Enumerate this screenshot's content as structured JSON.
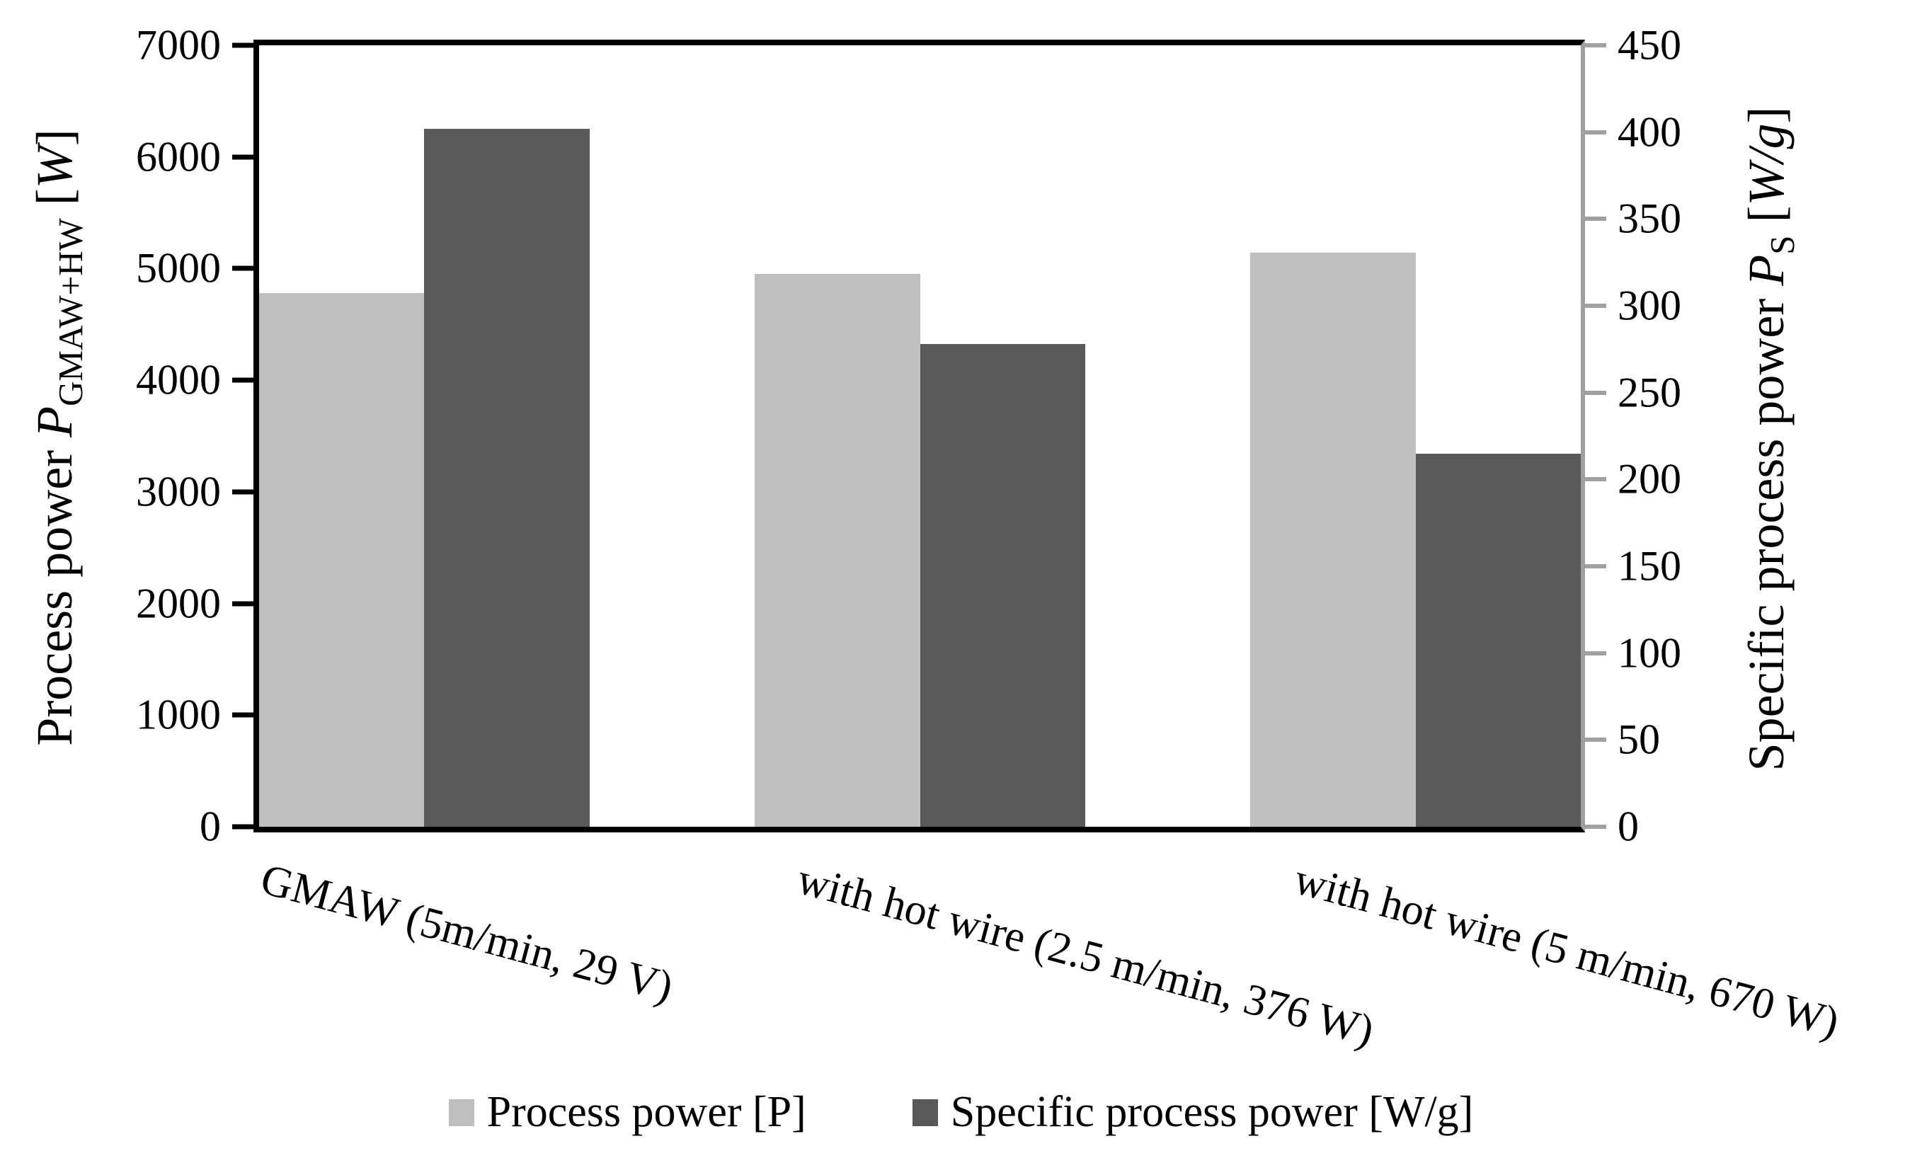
{
  "chart_data": {
    "type": "bar",
    "title": "",
    "categories": [
      "GMAW (5m/min, 29 V)",
      "with hot wire (2.5 m/min, 376 W)",
      "with hot wire (5 m/min, 670 W)"
    ],
    "series": [
      {
        "name": "Process power [P]",
        "axis": "left",
        "color": "#bfbfbf",
        "values": [
          4780,
          4950,
          5140
        ]
      },
      {
        "name": "Specific process power [W/g]",
        "axis": "right",
        "color": "#595959",
        "values": [
          402,
          278,
          215
        ]
      }
    ],
    "left_axis": {
      "label": "Process power",
      "symbol": "P",
      "symbol_sub": "GMAW+HW",
      "unit_open": "[",
      "unit_symbol": "W",
      "unit_close": "]",
      "min": 0,
      "max": 7000,
      "step": 1000
    },
    "right_axis": {
      "label": "Specific process power",
      "symbol": "P",
      "symbol_sub": "S",
      "unit_open": "[",
      "unit_symbol": "W/g",
      "unit_close": "]",
      "min": 0,
      "max": 450,
      "step": 50
    },
    "legend": {
      "position": "bottom",
      "items": [
        "Process power [P]",
        "Specific process power [W/g]"
      ]
    },
    "grid": false,
    "colors": {
      "axis_black": "#000000",
      "axis_right_gray": "#a0a0a0",
      "bar_light": "#bfbfbf",
      "bar_dark": "#595959"
    }
  }
}
